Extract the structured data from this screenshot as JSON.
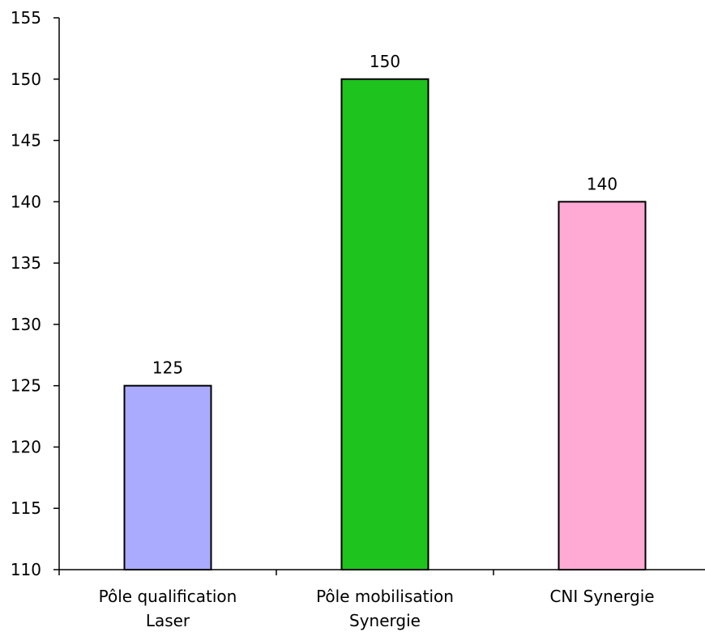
{
  "chart_data": {
    "type": "bar",
    "title": "",
    "xlabel": "",
    "ylabel": "",
    "categories": [
      [
        "Pôle qualification",
        "Laser"
      ],
      [
        "Pôle mobilisation",
        "Synergie"
      ],
      [
        "CNI Synergie"
      ]
    ],
    "values": [
      125,
      150,
      140
    ],
    "data_labels": [
      "125",
      "150",
      "140"
    ],
    "bar_colors": [
      "#aaaaff",
      "#1ec31e",
      "#ffaad4"
    ],
    "ylim": [
      110,
      155
    ],
    "yticks": [
      110,
      115,
      120,
      125,
      130,
      135,
      140,
      145,
      150,
      155
    ],
    "grid": false,
    "legend": "none"
  }
}
